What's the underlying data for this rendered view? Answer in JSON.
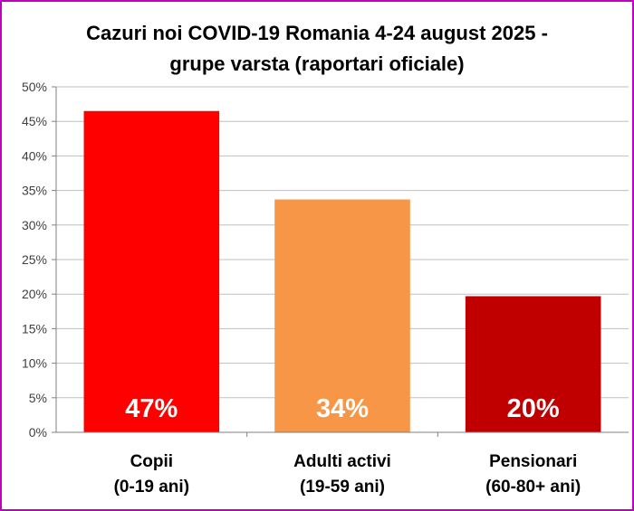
{
  "chart_data": {
    "type": "bar",
    "title_lines": [
      "Cazuri noi COVID-19 Romania 4-24 august 2025  -",
      "grupe varsta (raportari oficiale)"
    ],
    "categories": [
      [
        "Copii",
        "(0-19 ani)"
      ],
      [
        "Adulti activi",
        "(19-59 ani)"
      ],
      [
        "Pensionari",
        "(60-80+ ani)"
      ]
    ],
    "values": [
      46.5,
      33.7,
      19.7
    ],
    "data_labels": [
      "47%",
      "34%",
      "20%"
    ],
    "bar_colors": [
      "#ff0000",
      "#f79646",
      "#c00000"
    ],
    "ylim": [
      0,
      50
    ],
    "y_ticks": [
      0,
      5,
      10,
      15,
      20,
      25,
      30,
      35,
      40,
      45,
      50
    ],
    "y_tick_labels": [
      "0%",
      "5%",
      "10%",
      "15%",
      "20%",
      "25%",
      "30%",
      "35%",
      "40%",
      "45%",
      "50%"
    ],
    "grid": true,
    "legend": "none",
    "border_color": "#c000c0"
  }
}
